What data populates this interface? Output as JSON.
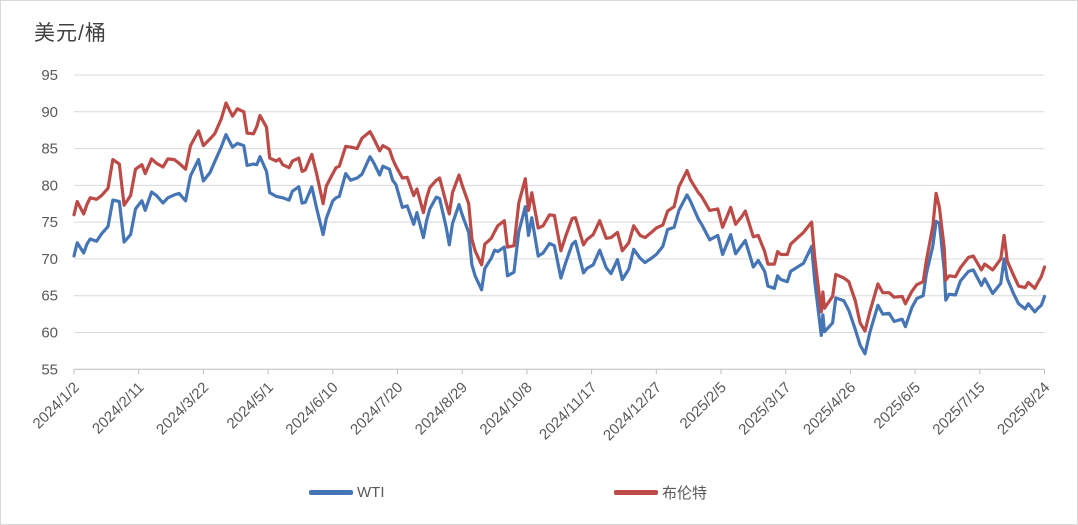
{
  "header": {
    "unit_label": "美元/桶"
  },
  "chart_data": {
    "type": "line",
    "title": "美元/桶",
    "xlabel": "",
    "ylabel": "美元/桶",
    "ylim": [
      55,
      95
    ],
    "ytick_step": 5,
    "grid": true,
    "legend_position": "bottom",
    "colors": {
      "grid": "#d9d9d9",
      "axis": "#bfbfbf",
      "text": "#595959",
      "title_text": "#404040",
      "wti": "#4575B5",
      "brent": "#BC4A47"
    },
    "x_tick_labels": [
      "2024/1/2",
      "2024/2/11",
      "2024/3/22",
      "2024/5/1",
      "2024/6/10",
      "2024/7/20",
      "2024/8/29",
      "2024/10/8",
      "2024/11/17",
      "2024/12/27",
      "2025/2/5",
      "2025/3/17",
      "2025/4/26",
      "2025/6/5",
      "2025/7/15",
      "2025/8/24"
    ],
    "x": [
      "2024/1/2",
      "2024/1/4",
      "2024/1/8",
      "2024/1/10",
      "2024/1/12",
      "2024/1/16",
      "2024/1/19",
      "2024/1/23",
      "2024/1/26",
      "2024/1/30",
      "2024/2/2",
      "2024/2/6",
      "2024/2/9",
      "2024/2/13",
      "2024/2/15",
      "2024/2/19",
      "2024/2/22",
      "2024/2/26",
      "2024/2/29",
      "2024/3/4",
      "2024/3/7",
      "2024/3/11",
      "2024/3/14",
      "2024/3/19",
      "2024/3/22",
      "2024/3/26",
      "2024/3/29",
      "2024/4/2",
      "2024/4/5",
      "2024/4/9",
      "2024/4/12",
      "2024/4/16",
      "2024/4/18",
      "2024/4/22",
      "2024/4/24",
      "2024/4/26",
      "2024/4/30",
      "2024/5/2",
      "2024/5/6",
      "2024/5/8",
      "2024/5/10",
      "2024/5/14",
      "2024/5/16",
      "2024/5/20",
      "2024/5/22",
      "2024/5/24",
      "2024/5/28",
      "2024/5/31",
      "2024/6/4",
      "2024/6/6",
      "2024/6/10",
      "2024/6/12",
      "2024/6/14",
      "2024/6/18",
      "2024/6/21",
      "2024/6/25",
      "2024/6/28",
      "2024/7/3",
      "2024/7/5",
      "2024/7/9",
      "2024/7/11",
      "2024/7/15",
      "2024/7/17",
      "2024/7/19",
      "2024/7/23",
      "2024/7/26",
      "2024/7/30",
      "2024/8/1",
      "2024/8/5",
      "2024/8/7",
      "2024/8/9",
      "2024/8/13",
      "2024/8/15",
      "2024/8/19",
      "2024/8/21",
      "2024/8/23",
      "2024/8/27",
      "2024/8/29",
      "2024/9/2",
      "2024/9/4",
      "2024/9/6",
      "2024/9/10",
      "2024/9/12",
      "2024/9/16",
      "2024/9/18",
      "2024/9/20",
      "2024/9/24",
      "2024/9/26",
      "2024/9/30",
      "2024/10/3",
      "2024/10/7",
      "2024/10/9",
      "2024/10/11",
      "2024/10/15",
      "2024/10/18",
      "2024/10/22",
      "2024/10/25",
      "2024/10/29",
      "2024/11/1",
      "2024/11/5",
      "2024/11/7",
      "2024/11/12",
      "2024/11/14",
      "2024/11/18",
      "2024/11/22",
      "2024/11/26",
      "2024/11/29",
      "2024/12/3",
      "2024/12/6",
      "2024/12/10",
      "2024/12/13",
      "2024/12/17",
      "2024/12/20",
      "2024/12/24",
      "2024/12/27",
      "2024/12/31",
      "2025/1/3",
      "2025/1/7",
      "2025/1/10",
      "2025/1/15",
      "2025/1/17",
      "2025/1/22",
      "2025/1/24",
      "2025/1/29",
      "2025/2/3",
      "2025/2/6",
      "2025/2/11",
      "2025/2/14",
      "2025/2/18",
      "2025/2/20",
      "2025/2/25",
      "2025/2/28",
      "2025/3/4",
      "2025/3/6",
      "2025/3/10",
      "2025/3/12",
      "2025/3/14",
      "2025/3/18",
      "2025/3/20",
      "2025/3/25",
      "2025/3/28",
      "2025/4/2",
      "2025/4/4",
      "2025/4/8",
      "2025/4/9",
      "2025/4/10",
      "2025/4/15",
      "2025/4/17",
      "2025/4/22",
      "2025/4/25",
      "2025/4/29",
      "2025/5/2",
      "2025/5/5",
      "2025/5/8",
      "2025/5/13",
      "2025/5/16",
      "2025/5/20",
      "2025/5/23",
      "2025/5/28",
      "2025/5/30",
      "2025/6/3",
      "2025/6/6",
      "2025/6/10",
      "2025/6/12",
      "2025/6/16",
      "2025/6/18",
      "2025/6/20",
      "2025/6/23",
      "2025/6/24",
      "2025/6/26",
      "2025/6/30",
      "2025/7/3",
      "2025/7/8",
      "2025/7/11",
      "2025/7/16",
      "2025/7/18",
      "2025/7/23",
      "2025/7/28",
      "2025/7/30",
      "2025/8/1",
      "2025/8/5",
      "2025/8/8",
      "2025/8/12",
      "2025/8/14",
      "2025/8/18",
      "2025/8/20",
      "2025/8/22",
      "2025/8/24"
    ],
    "series": [
      {
        "name": "WTI",
        "color": "#4575B5",
        "values": [
          70.4,
          72.2,
          70.8,
          72.0,
          72.7,
          72.4,
          73.4,
          74.4,
          78.0,
          77.8,
          72.3,
          73.3,
          76.8,
          77.9,
          76.6,
          79.1,
          78.6,
          77.6,
          78.3,
          78.7,
          78.9,
          77.9,
          81.3,
          83.5,
          80.6,
          81.7,
          83.2,
          85.2,
          86.9,
          85.2,
          85.7,
          85.4,
          82.7,
          82.9,
          82.8,
          83.9,
          81.9,
          79.0,
          78.5,
          78.4,
          78.3,
          78.0,
          79.2,
          79.8,
          77.6,
          77.7,
          79.8,
          76.9,
          73.3,
          75.5,
          77.9,
          78.3,
          78.5,
          81.6,
          80.7,
          81.0,
          81.5,
          83.9,
          83.2,
          81.4,
          82.6,
          82.2,
          80.7,
          80.1,
          77.0,
          77.2,
          74.7,
          76.3,
          72.9,
          75.2,
          76.8,
          78.4,
          78.2,
          74.4,
          71.9,
          74.8,
          77.4,
          76.0,
          73.6,
          69.2,
          67.7,
          65.8,
          68.7,
          70.1,
          71.2,
          71.0,
          71.6,
          67.7,
          68.2,
          73.7,
          77.1,
          73.2,
          75.6,
          70.4,
          70.8,
          72.1,
          71.8,
          67.4,
          69.5,
          72.0,
          72.4,
          68.1,
          68.7,
          69.2,
          71.2,
          68.8,
          68.0,
          69.9,
          67.2,
          68.6,
          71.3,
          70.1,
          69.5,
          70.1,
          70.6,
          71.7,
          74.0,
          74.3,
          76.6,
          78.7,
          77.9,
          75.4,
          74.7,
          72.6,
          73.2,
          70.6,
          73.3,
          70.7,
          71.9,
          72.5,
          68.9,
          69.8,
          68.3,
          66.3,
          66.0,
          67.7,
          67.2,
          66.9,
          68.3,
          69.0,
          69.4,
          71.7,
          66.9,
          59.6,
          62.4,
          60.1,
          61.3,
          64.7,
          64.3,
          63.0,
          60.4,
          58.3,
          57.1,
          60.0,
          63.7,
          62.5,
          62.6,
          61.5,
          61.8,
          60.8,
          63.4,
          64.6,
          65.0,
          68.0,
          71.8,
          75.1,
          74.9,
          68.5,
          64.4,
          65.2,
          65.1,
          67.0,
          68.3,
          68.5,
          66.4,
          67.3,
          65.3,
          66.7,
          70.0,
          67.3,
          65.2,
          63.9,
          63.2,
          63.9,
          62.8,
          63.3,
          63.7,
          64.9
        ]
      },
      {
        "name": "布伦特",
        "color": "#BC4A47",
        "values": [
          76.0,
          77.8,
          76.1,
          77.4,
          78.3,
          78.1,
          78.6,
          79.6,
          83.5,
          82.9,
          77.3,
          78.6,
          82.2,
          82.8,
          81.6,
          83.6,
          83.0,
          82.5,
          83.6,
          83.5,
          83.0,
          82.2,
          85.4,
          87.4,
          85.4,
          86.3,
          87.0,
          89.0,
          91.2,
          89.4,
          90.4,
          90.0,
          87.1,
          87.0,
          88.0,
          89.5,
          87.9,
          83.7,
          83.3,
          83.6,
          82.8,
          82.4,
          83.3,
          83.7,
          81.9,
          82.1,
          84.2,
          81.6,
          77.5,
          79.9,
          81.6,
          82.4,
          82.6,
          85.3,
          85.2,
          85.0,
          86.4,
          87.3,
          86.5,
          84.7,
          85.4,
          84.9,
          83.6,
          82.6,
          81.0,
          81.1,
          78.6,
          79.5,
          76.3,
          78.3,
          79.7,
          80.7,
          81.0,
          77.7,
          76.1,
          79.0,
          81.4,
          80.0,
          77.5,
          72.7,
          71.1,
          69.2,
          72.0,
          72.8,
          73.7,
          74.5,
          75.2,
          71.6,
          71.8,
          77.6,
          80.9,
          76.6,
          79.0,
          74.2,
          74.5,
          76.0,
          75.9,
          71.1,
          73.1,
          75.5,
          75.6,
          71.9,
          72.6,
          73.3,
          75.2,
          72.8,
          72.9,
          73.6,
          71.1,
          72.2,
          74.5,
          73.2,
          72.9,
          73.6,
          74.2,
          74.6,
          76.5,
          77.1,
          79.8,
          82.0,
          80.8,
          79.0,
          78.5,
          76.6,
          76.8,
          74.3,
          77.0,
          74.7,
          75.8,
          76.5,
          73.0,
          73.2,
          71.0,
          69.3,
          69.3,
          71.0,
          70.6,
          70.6,
          72.0,
          73.0,
          73.6,
          75.0,
          70.1,
          62.8,
          65.5,
          63.3,
          64.9,
          67.9,
          67.4,
          66.9,
          64.3,
          61.3,
          60.2,
          62.8,
          66.6,
          65.4,
          65.4,
          64.8,
          64.9,
          63.9,
          65.6,
          66.5,
          66.9,
          69.8,
          74.5,
          78.9,
          77.0,
          71.5,
          67.1,
          67.7,
          67.6,
          68.8,
          70.2,
          70.4,
          68.5,
          69.3,
          68.5,
          70.0,
          73.2,
          69.7,
          67.7,
          66.3,
          66.1,
          66.8,
          66.0,
          66.8,
          67.6,
          68.9
        ]
      }
    ]
  }
}
